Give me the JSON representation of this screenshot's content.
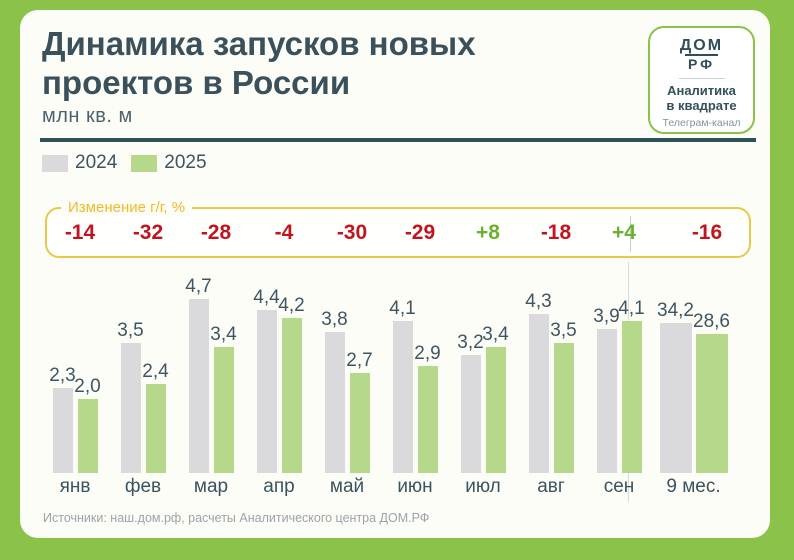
{
  "header": {
    "title_line1": "Динамика запусков новых",
    "title_line2": "проектов в России",
    "subtitle": "млн кв. м"
  },
  "logo": {
    "mark_line1": "ДОМ",
    "mark_line2": "РФ",
    "name_line1": "Аналитика",
    "name_line2": "в квадрате",
    "channel": "Телеграм-канал"
  },
  "change_box": {
    "label": "Изменение г/г, %"
  },
  "chart_data": {
    "type": "bar",
    "title": "Динамика запусков новых проектов в России",
    "ylabel": "млн кв. м",
    "legend_position": "top-left",
    "grid": false,
    "categories": [
      "янв",
      "фев",
      "мар",
      "апр",
      "май",
      "июн",
      "июл",
      "авг",
      "сен",
      "9 мес."
    ],
    "series": [
      {
        "name": "2024",
        "color": "#dadadc",
        "values": [
          2.3,
          3.5,
          4.7,
          4.4,
          3.8,
          4.1,
          3.2,
          4.3,
          3.9,
          34.2
        ]
      },
      {
        "name": "2025",
        "color": "#b6d88a",
        "values": [
          2.0,
          2.4,
          3.4,
          4.2,
          2.7,
          2.9,
          3.4,
          3.5,
          4.1,
          28.6
        ]
      }
    ],
    "yoy_change_pct": [
      -14,
      -32,
      -28,
      -4,
      -30,
      -29,
      8,
      -18,
      4,
      -16
    ],
    "note": "последняя категория — итог за 9 месяцев, отделена разделителем"
  },
  "colors": {
    "frame_green": "#8bc24a",
    "negative": "#c21420",
    "positive": "#6ab22e",
    "accent_gold": "#e9c84a"
  },
  "footer": {
    "source": "Источники: наш.дом.рф, расчеты Аналитического центра ДОМ.РФ"
  }
}
